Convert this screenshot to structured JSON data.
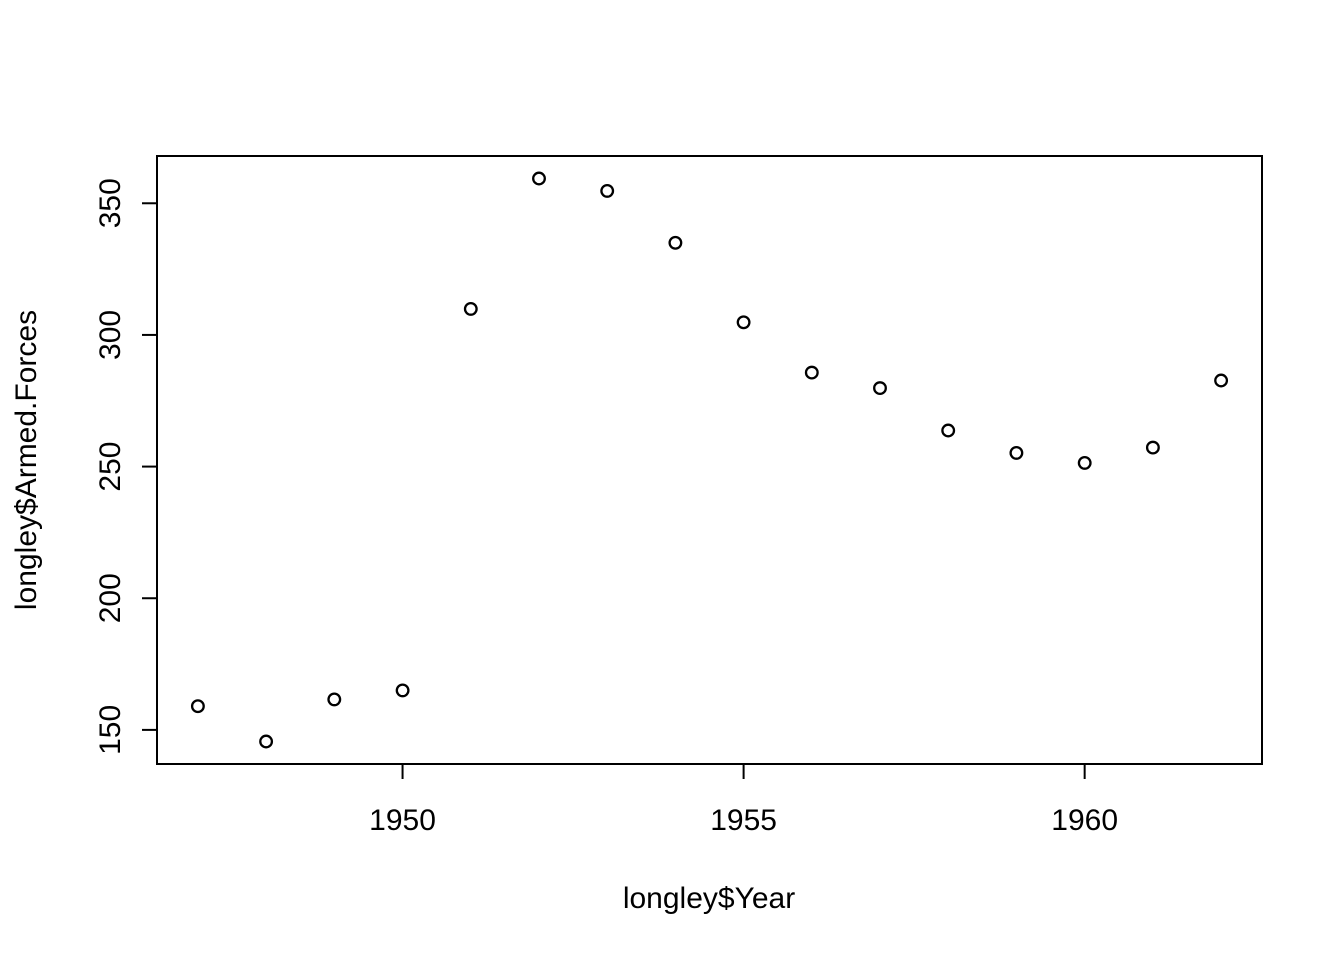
{
  "chart_data": {
    "type": "scatter",
    "title": "",
    "xlabel": "longley$Year",
    "ylabel": "longley$Armed.Forces",
    "x": [
      1947,
      1948,
      1949,
      1950,
      1951,
      1952,
      1953,
      1954,
      1955,
      1956,
      1957,
      1958,
      1959,
      1960,
      1961,
      1962
    ],
    "y": [
      159.0,
      145.6,
      161.6,
      165.0,
      309.9,
      359.4,
      354.7,
      335.0,
      304.8,
      285.7,
      279.8,
      263.7,
      255.2,
      251.4,
      257.2,
      282.7
    ],
    "x_ticks": [
      1950,
      1955,
      1960
    ],
    "y_ticks": [
      150,
      200,
      250,
      300,
      350
    ],
    "x_tick_labels": [
      "1950",
      "1955",
      "1960"
    ],
    "y_tick_labels": [
      "150",
      "200",
      "250",
      "300",
      "350"
    ],
    "xlim": [
      1946.4,
      1962.6
    ],
    "ylim": [
      137.048,
      367.952
    ],
    "grid": "off",
    "legend": "none",
    "marker": "open-circle",
    "point_color": "#000000",
    "axis_color": "#000000",
    "background_color": "#ffffff"
  }
}
